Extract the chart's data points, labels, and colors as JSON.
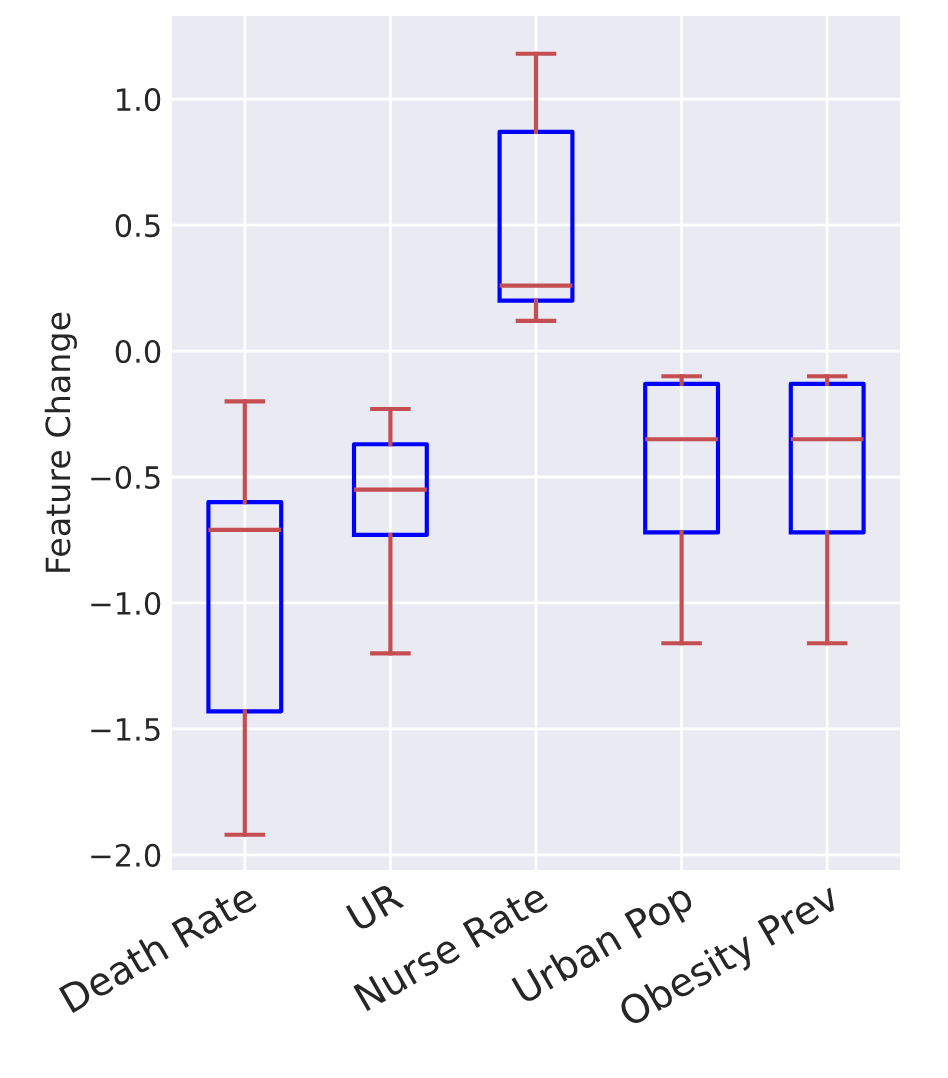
{
  "chart_data": {
    "type": "box",
    "ylabel": "Feature Change",
    "categories": [
      "Death Rate",
      "UR",
      "Nurse Rate",
      "Urban Pop",
      "Obesity Prev"
    ],
    "boxes": [
      {
        "low": -1.92,
        "q1": -1.43,
        "median": -0.71,
        "q3": -0.6,
        "high": -0.2
      },
      {
        "low": -1.2,
        "q1": -0.73,
        "median": -0.55,
        "q3": -0.37,
        "high": -0.23
      },
      {
        "low": 0.12,
        "q1": 0.2,
        "median": 0.26,
        "q3": 0.87,
        "high": 1.18
      },
      {
        "low": -1.16,
        "q1": -0.72,
        "median": -0.35,
        "q3": -0.13,
        "high": -0.1
      },
      {
        "low": -1.16,
        "q1": -0.72,
        "median": -0.35,
        "q3": -0.13,
        "high": -0.1
      }
    ],
    "color": "#0000ff",
    "ylim": [
      -2.06,
      1.33
    ],
    "yticks": [
      {
        "value": -2.0,
        "label": "−2.0"
      },
      {
        "value": -1.5,
        "label": "−1.5"
      },
      {
        "value": -1.0,
        "label": "−1.0"
      },
      {
        "value": -0.5,
        "label": "−0.5"
      },
      {
        "value": 0.0,
        "label": "0.0"
      },
      {
        "value": 0.5,
        "label": "0.5"
      },
      {
        "value": 1.0,
        "label": "1.0"
      }
    ],
    "grid": true
  }
}
